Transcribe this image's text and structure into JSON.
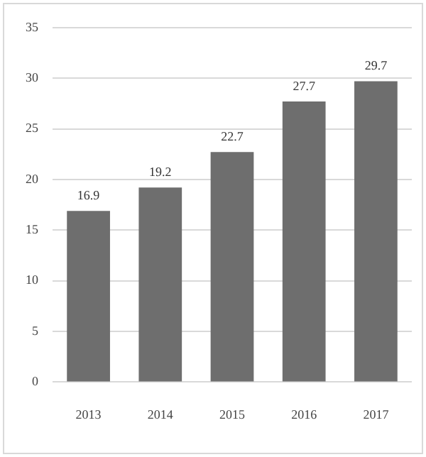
{
  "chart_data": {
    "type": "bar",
    "categories": [
      "2013",
      "2014",
      "2015",
      "2016",
      "2017"
    ],
    "values": [
      16.9,
      19.2,
      22.7,
      27.7,
      29.7
    ],
    "color": "#6e6e6e",
    "ylim": [
      0,
      35
    ],
    "yticks": [
      0,
      5,
      10,
      15,
      20,
      25,
      30,
      35
    ],
    "grid": "y",
    "data_labels": true,
    "legend": false
  }
}
